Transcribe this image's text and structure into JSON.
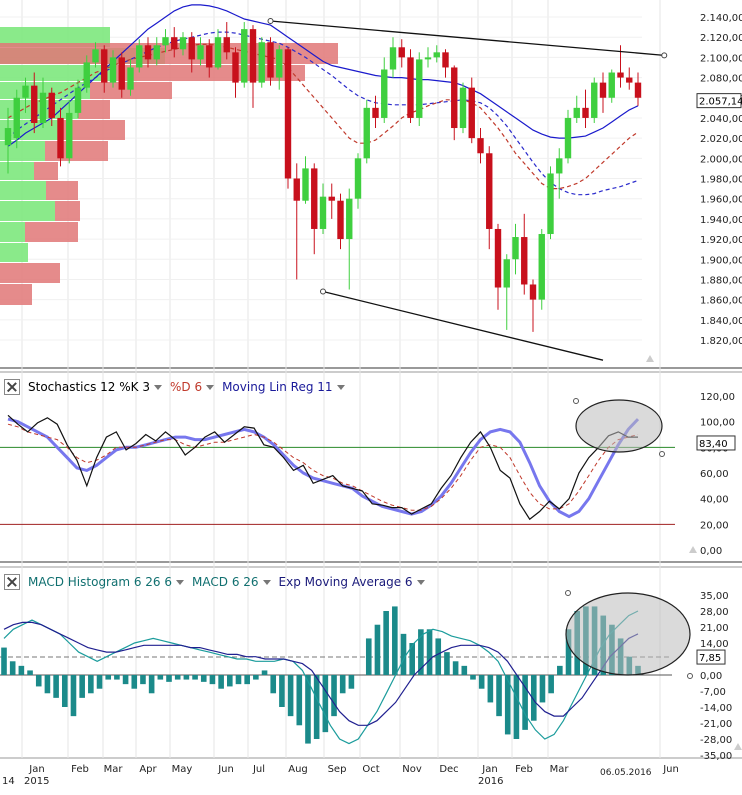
{
  "colors": {
    "up": "#3fcf3f",
    "down": "#c8101c",
    "vpUp": "#7de87d",
    "vpDown": "#e07777",
    "sma": "#1a1acc",
    "dashRed": "#c0392b",
    "dashBlue": "#2a2acc",
    "stochK": "#111111",
    "stochD": "#c0392b",
    "linreg": "#7777ee",
    "teal": "#1b8a8a",
    "macd": "#1b9c9c",
    "signal": "#202090",
    "green": "#2a8a2a",
    "darkred": "#a02020"
  },
  "price_axis": {
    "ticks": [
      "2.140,00",
      "2.120,00",
      "2.100,00",
      "2.080,00",
      "2.060,00",
      "2.040,00",
      "2.020,00",
      "2.000,00",
      "1.980,00",
      "1.960,00",
      "1.940,00",
      "1.920,00",
      "1.900,00",
      "1.880,00",
      "1.860,00",
      "1.840,00",
      "1.820,00"
    ],
    "current": "2.057,14"
  },
  "stoch_axis": {
    "ticks": [
      "120,00",
      "100,00",
      "80,00",
      "60,00",
      "40,00",
      "20,00",
      "0,00"
    ],
    "current": "83,40"
  },
  "macd_axis": {
    "ticks": [
      "35,00",
      "28,00",
      "21,00",
      "14,00",
      "7,00",
      "0,00",
      "-7,00",
      "-14,00",
      "-21,00",
      "-28,00",
      "-35,00"
    ],
    "current": "7,85"
  },
  "x_axis": {
    "months": [
      "Jan",
      "Feb",
      "Mar",
      "Apr",
      "May",
      "Jun",
      "Jul",
      "Aug",
      "Sep",
      "Oct",
      "Nov",
      "Dec",
      "Jan",
      "Feb",
      "Mar",
      "Jun"
    ],
    "years": [
      "14",
      "2015",
      "2016"
    ],
    "date_label": "06.05.2016"
  },
  "stoch_header": {
    "stoch": "Stochastics 12 %K 3",
    "d": "%D 6",
    "linreg": "Moving Lin Reg 11"
  },
  "macd_header": {
    "hist": "MACD Histogram 6 26 6",
    "macd": "MACD 6 26",
    "ema": "Exp Moving Average 6"
  },
  "chart_data": [
    {
      "type": "candlestick",
      "ylim": [
        1800,
        2150
      ],
      "candles": [
        [
          2013,
          2030,
          1985,
          2050
        ],
        [
          2020,
          2060,
          2010,
          2068
        ],
        [
          2060,
          2072,
          2045,
          2080
        ],
        [
          2072,
          2035,
          2025,
          2085
        ],
        [
          2035,
          2065,
          2030,
          2080
        ],
        [
          2065,
          2040,
          2032,
          2070
        ],
        [
          2040,
          2000,
          1992,
          2050
        ],
        [
          2000,
          2045,
          1995,
          2058
        ],
        [
          2045,
          2070,
          2040,
          2078
        ],
        [
          2070,
          2095,
          2065,
          2102
        ],
        [
          2095,
          2108,
          2090,
          2115
        ],
        [
          2108,
          2075,
          2065,
          2112
        ],
        [
          2075,
          2100,
          2070,
          2107
        ],
        [
          2100,
          2068,
          2060,
          2105
        ],
        [
          2068,
          2090,
          2062,
          2098
        ],
        [
          2090,
          2112,
          2085,
          2118
        ],
        [
          2112,
          2098,
          2090,
          2120
        ],
        [
          2098,
          2112,
          2092,
          2120
        ],
        [
          2112,
          2120,
          2105,
          2128
        ],
        [
          2120,
          2108,
          2100,
          2130
        ],
        [
          2108,
          2120,
          2102,
          2125
        ],
        [
          2120,
          2098,
          2085,
          2125
        ],
        [
          2098,
          2112,
          2092,
          2120
        ],
        [
          2112,
          2090,
          2080,
          2118
        ],
        [
          2090,
          2120,
          2088,
          2128
        ],
        [
          2120,
          2105,
          2098,
          2135
        ],
        [
          2105,
          2075,
          2060,
          2110
        ],
        [
          2075,
          2128,
          2070,
          2135
        ],
        [
          2128,
          2075,
          2050,
          2132
        ],
        [
          2075,
          2115,
          2070,
          2120
        ],
        [
          2115,
          2080,
          2072,
          2120
        ],
        [
          2080,
          2108,
          2068,
          2112
        ],
        [
          2108,
          1980,
          1970,
          2110
        ],
        [
          1980,
          1958,
          1880,
          1995
        ],
        [
          1958,
          1990,
          1955,
          2002
        ],
        [
          1990,
          1930,
          1905,
          1995
        ],
        [
          1930,
          1962,
          1925,
          1975
        ],
        [
          1962,
          1958,
          1940,
          1975
        ],
        [
          1958,
          1920,
          1910,
          1965
        ],
        [
          1920,
          1960,
          1870,
          1970
        ],
        [
          1960,
          2000,
          1950,
          2005
        ],
        [
          2000,
          2050,
          1995,
          2058
        ],
        [
          2050,
          2040,
          2030,
          2062
        ],
        [
          2040,
          2088,
          2035,
          2100
        ],
        [
          2088,
          2110,
          2080,
          2120
        ],
        [
          2110,
          2100,
          2090,
          2118
        ],
        [
          2100,
          2040,
          2035,
          2108
        ],
        [
          2040,
          2098,
          2032,
          2105
        ],
        [
          2098,
          2100,
          2090,
          2110
        ],
        [
          2100,
          2105,
          2095,
          2112
        ],
        [
          2105,
          2090,
          2080,
          2108
        ],
        [
          2090,
          2030,
          2018,
          2092
        ],
        [
          2030,
          2070,
          2025,
          2075
        ],
        [
          2070,
          2020,
          2015,
          2080
        ],
        [
          2020,
          2005,
          1995,
          2030
        ],
        [
          2005,
          1930,
          1910,
          2012
        ],
        [
          1930,
          1872,
          1850,
          1935
        ],
        [
          1872,
          1900,
          1830,
          1905
        ],
        [
          1900,
          1922,
          1885,
          1935
        ],
        [
          1922,
          1875,
          1865,
          1945
        ],
        [
          1875,
          1860,
          1828,
          1880
        ],
        [
          1860,
          1925,
          1850,
          1930
        ],
        [
          1925,
          1985,
          1920,
          1992
        ],
        [
          1985,
          2000,
          1960,
          2010
        ],
        [
          2000,
          2040,
          1995,
          2048
        ],
        [
          2040,
          2050,
          2035,
          2062
        ],
        [
          2050,
          2040,
          2030,
          2068
        ],
        [
          2040,
          2075,
          2035,
          2080
        ],
        [
          2075,
          2060,
          2045,
          2085
        ],
        [
          2060,
          2085,
          2055,
          2088
        ],
        [
          2085,
          2080,
          2070,
          2112
        ],
        [
          2080,
          2075,
          2068,
          2090
        ],
        [
          2075,
          2060,
          2052,
          2085
        ]
      ],
      "sma": [
        2012,
        2018,
        2025,
        2030,
        2035,
        2040,
        2048,
        2056,
        2064,
        2072,
        2080,
        2088,
        2096,
        2104,
        2112,
        2120,
        2128,
        2134,
        2140,
        2146,
        2150,
        2152,
        2152,
        2151,
        2149,
        2146,
        2142,
        2138,
        2136,
        2134,
        2132,
        2126,
        2120,
        2114,
        2108,
        2102,
        2096,
        2092,
        2090,
        2088,
        2086,
        2084,
        2082,
        2081,
        2080,
        2080,
        2079,
        2078,
        2078,
        2077,
        2076,
        2075,
        2072,
        2068,
        2064,
        2058,
        2052,
        2046,
        2040,
        2034,
        2028,
        2024,
        2021,
        2020,
        2020,
        2021,
        2022,
        2026,
        2030,
        2036,
        2042,
        2048,
        2052
      ],
      "ema_red": [
        2040,
        2045,
        2050,
        2055,
        2058,
        2062,
        2065,
        2070,
        2075,
        2080,
        2085,
        2088,
        2092,
        2095,
        2098,
        2100,
        2102,
        2104,
        2106,
        2108,
        2110,
        2112,
        2113,
        2113,
        2112,
        2110,
        2108,
        2106,
        2104,
        2102,
        2100,
        2098,
        2090,
        2080,
        2070,
        2060,
        2050,
        2040,
        2030,
        2020,
        2015,
        2015,
        2018,
        2025,
        2032,
        2040,
        2045,
        2048,
        2052,
        2055,
        2058,
        2058,
        2058,
        2055,
        2050,
        2040,
        2030,
        2018,
        2005,
        1995,
        1985,
        1975,
        1970,
        1970,
        1972,
        1975,
        1980,
        1988,
        1996,
        2004,
        2012,
        2020,
        2026
      ],
      "ema_blue": [
        2020,
        2028,
        2034,
        2040,
        2046,
        2052,
        2058,
        2064,
        2070,
        2075,
        2080,
        2086,
        2090,
        2094,
        2098,
        2102,
        2106,
        2110,
        2113,
        2116,
        2118,
        2120,
        2122,
        2124,
        2125,
        2125,
        2124,
        2122,
        2120,
        2118,
        2116,
        2114,
        2110,
        2105,
        2100,
        2094,
        2088,
        2082,
        2075,
        2068,
        2062,
        2058,
        2055,
        2054,
        2053,
        2053,
        2053,
        2053,
        2054,
        2055,
        2056,
        2057,
        2058,
        2057,
        2055,
        2050,
        2042,
        2032,
        2020,
        2008,
        1996,
        1985,
        1976,
        1970,
        1966,
        1964,
        1964,
        1965,
        1968,
        1970,
        1972,
        1975,
        1978
      ],
      "trend_lines": [
        {
          "from": [
            30,
            2136
          ],
          "to": [
            75,
            2102
          ]
        },
        {
          "from": [
            36,
            1868
          ],
          "to": [
            68,
            1800
          ]
        }
      ]
    },
    {
      "type": "line",
      "title": "Stochastics 12 %K 3",
      "ylim": [
        0,
        120
      ],
      "k": [
        105,
        98,
        92,
        99,
        103,
        98,
        82,
        70,
        50,
        72,
        88,
        92,
        78,
        83,
        90,
        85,
        92,
        86,
        74,
        80,
        88,
        92,
        84,
        90,
        96,
        95,
        82,
        80,
        72,
        62,
        66,
        52,
        55,
        58,
        50,
        48,
        46,
        36,
        35,
        33,
        33,
        28,
        32,
        36,
        48,
        58,
        72,
        84,
        92,
        80,
        62,
        56,
        36,
        24,
        30,
        38,
        32,
        40,
        60,
        72,
        80,
        89,
        92,
        88,
        88
      ],
      "d": [
        98,
        96,
        92,
        90,
        88,
        86,
        80,
        72,
        68,
        70,
        74,
        80,
        80,
        80,
        82,
        84,
        86,
        86,
        82,
        80,
        82,
        84,
        84,
        86,
        88,
        90,
        88,
        84,
        78,
        72,
        68,
        62,
        58,
        56,
        52,
        50,
        46,
        42,
        38,
        35,
        33,
        31,
        31,
        34,
        40,
        48,
        58,
        70,
        80,
        82,
        80,
        72,
        58,
        45,
        36,
        32,
        32,
        36,
        46,
        58,
        70,
        80,
        86,
        88,
        90
      ],
      "linreg": [
        102,
        100,
        96,
        92,
        88,
        80,
        72,
        64,
        62,
        66,
        72,
        78,
        80,
        80,
        82,
        84,
        86,
        88,
        88,
        86,
        86,
        88,
        90,
        92,
        94,
        92,
        88,
        82,
        74,
        66,
        60,
        56,
        54,
        52,
        50,
        48,
        42,
        38,
        34,
        32,
        30,
        28,
        30,
        35,
        42,
        52,
        64,
        76,
        86,
        92,
        94,
        92,
        84,
        68,
        50,
        38,
        30,
        26,
        30,
        40,
        54,
        68,
        82,
        94,
        102
      ]
    },
    {
      "type": "bar",
      "title": "MACD Histogram 6 26 6",
      "ylim": [
        -35,
        35
      ],
      "hist": [
        12,
        6,
        4,
        2,
        -5,
        -8,
        -10,
        -14,
        -18,
        -10,
        -8,
        -6,
        -2,
        -2,
        -4,
        -6,
        -4,
        -8,
        -2,
        -3,
        -2,
        -2,
        -2,
        -3,
        -4,
        -6,
        -5,
        -4,
        -4,
        -2,
        2,
        -8,
        -14,
        -18,
        -22,
        -30,
        -28,
        -25,
        -18,
        -8,
        -6,
        0,
        16,
        22,
        28,
        30,
        18,
        14,
        20,
        20,
        16,
        10,
        6,
        4,
        -2,
        -6,
        -12,
        -18,
        -26,
        -28,
        -24,
        -20,
        -12,
        -8,
        4,
        20,
        28,
        30,
        30,
        26,
        22,
        16,
        8,
        4
      ],
      "macd": [
        16,
        20,
        22,
        24,
        22,
        20,
        18,
        14,
        10,
        8,
        6,
        8,
        10,
        12,
        14,
        15,
        16,
        15,
        14,
        13,
        12,
        11,
        10,
        9,
        8,
        7,
        7,
        6,
        6,
        6,
        7,
        6,
        2,
        -6,
        -14,
        -22,
        -28,
        -30,
        -28,
        -22,
        -16,
        -8,
        0,
        8,
        14,
        18,
        20,
        19,
        17,
        16,
        15,
        13,
        10,
        6,
        -2,
        -10,
        -18,
        -24,
        -28,
        -26,
        -20,
        -12,
        -4,
        4,
        12,
        18,
        22,
        26,
        28
      ],
      "signal": [
        20,
        22,
        23,
        23,
        22,
        20,
        18,
        16,
        14,
        12,
        11,
        10,
        10,
        11,
        12,
        13,
        13,
        13,
        13,
        13,
        12,
        12,
        11,
        10,
        9,
        9,
        8,
        8,
        7,
        7,
        7,
        6,
        5,
        2,
        -4,
        -10,
        -16,
        -20,
        -22,
        -22,
        -20,
        -16,
        -12,
        -6,
        0,
        4,
        8,
        10,
        12,
        13,
        13,
        13,
        12,
        10,
        6,
        0,
        -6,
        -12,
        -16,
        -18,
        -18,
        -14,
        -10,
        -4,
        2,
        8,
        12,
        16,
        18
      ]
    }
  ]
}
